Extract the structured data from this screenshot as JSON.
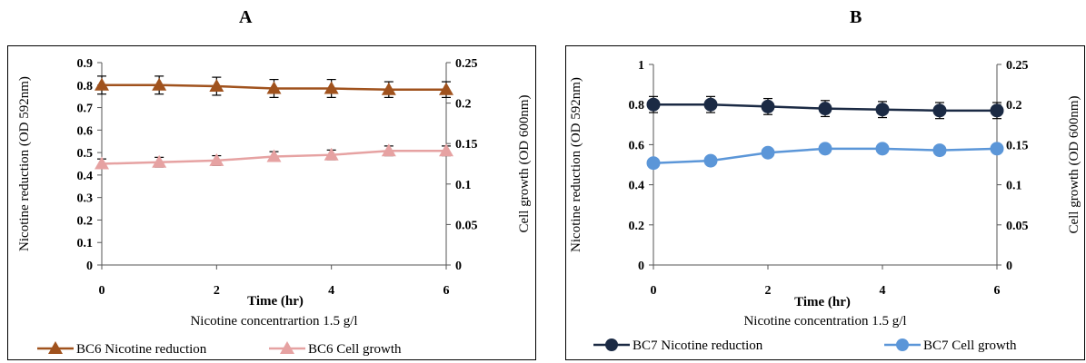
{
  "chart_data": [
    {
      "panel_label": "A",
      "type": "line",
      "xlabel": "Time (hr)",
      "ylabel": "Nicotine reduction (OD 592nm)",
      "y2label": "Cell growth (OD 600nm)",
      "note": "Nicotine concentrartion 1.5 g/l",
      "xlim": [
        0,
        6
      ],
      "xticks": [
        "0",
        "2",
        "4",
        "6"
      ],
      "ylim": [
        0,
        0.9
      ],
      "yticks": [
        "0",
        "0.1",
        "0.2",
        "0.3",
        "0.4",
        "0.5",
        "0.6",
        "0.7",
        "0.8",
        "0.9"
      ],
      "y2lim": [
        0,
        0.25
      ],
      "y2ticks": [
        "0",
        "0.05",
        "0.1",
        "0.15",
        "0.2",
        "0.25"
      ],
      "grid": false,
      "legend_position": "bottom",
      "marker": "triangle",
      "x": [
        0,
        1,
        2,
        3,
        4,
        5,
        6
      ],
      "series": [
        {
          "name": "BC6 Nicotine reduction",
          "axis": "left",
          "color": "#a0521d",
          "values": [
            0.8,
            0.8,
            0.795,
            0.785,
            0.785,
            0.78,
            0.78
          ],
          "error": [
            0.04,
            0.04,
            0.04,
            0.04,
            0.04,
            0.035,
            0.035
          ]
        },
        {
          "name": "BC6 Cell growth",
          "axis": "right",
          "color": "#e6a2a2",
          "values": [
            0.125,
            0.127,
            0.129,
            0.134,
            0.136,
            0.141,
            0.141
          ],
          "error": [
            0.006,
            0.006,
            0.006,
            0.006,
            0.006,
            0.006,
            0.006
          ]
        }
      ]
    },
    {
      "panel_label": "B",
      "type": "line",
      "xlabel": "Time (hr)",
      "ylabel": "Nicotine reduction (OD 592nm)",
      "y2label": "Cell growth (OD 600nm)",
      "note": "Nicotine concentration 1.5 g/l",
      "xlim": [
        0,
        6
      ],
      "xticks": [
        "0",
        "2",
        "4",
        "6"
      ],
      "ylim": [
        0,
        1
      ],
      "yticks": [
        "0",
        "0.2",
        "0.4",
        "0.6",
        "0.8",
        "1"
      ],
      "y2lim": [
        0,
        0.25
      ],
      "y2ticks": [
        "0",
        "0.05",
        "0.1",
        "0.15",
        "0.2",
        "0.25"
      ],
      "grid": false,
      "legend_position": "bottom",
      "marker": "circle",
      "x": [
        0,
        1,
        2,
        3,
        4,
        5,
        6
      ],
      "series": [
        {
          "name": "BC7 Nicotine reduction",
          "axis": "left",
          "color": "#1b2a44",
          "values": [
            0.8,
            0.8,
            0.79,
            0.78,
            0.775,
            0.77,
            0.77
          ],
          "error": [
            0.04,
            0.04,
            0.04,
            0.04,
            0.04,
            0.04,
            0.04
          ]
        },
        {
          "name": "BC7 Cell growth",
          "axis": "right",
          "color": "#5b96d8",
          "values": [
            0.127,
            0.13,
            0.14,
            0.145,
            0.145,
            0.143,
            0.145
          ],
          "error": [
            0.004,
            0.004,
            0.004,
            0.004,
            0.004,
            0.004,
            0.004
          ]
        }
      ]
    }
  ]
}
